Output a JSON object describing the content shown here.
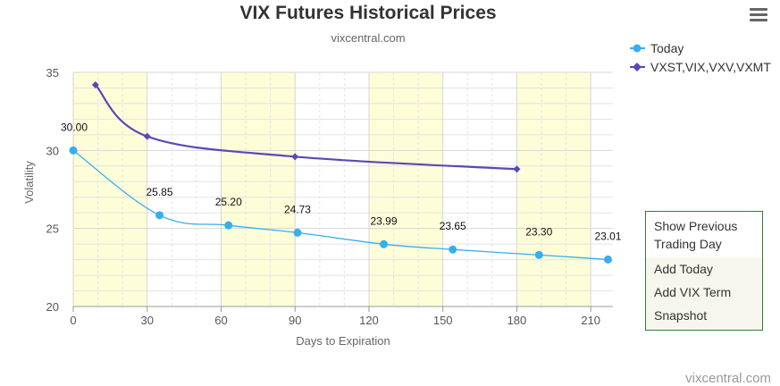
{
  "header": {
    "title": "VIX Futures Historical Prices",
    "subtitle": "vixcentral.com"
  },
  "credit": "vixcentral.com",
  "menu_icon": "hamburger-menu-icon",
  "context_menu": {
    "items": [
      {
        "label_line1": "Show Previous",
        "label_line2": "Trading Day"
      },
      {
        "label_line1": "Add Today"
      },
      {
        "label_line1": "Add VIX Term"
      },
      {
        "label_line1": "Snapshot"
      }
    ]
  },
  "colors": {
    "today": "#37aef0",
    "vxst": "#5a48b7",
    "band": "#fdfdd8",
    "grid": "#e3e3e3",
    "menu_border": "#2e7d32"
  },
  "chart_data": {
    "type": "line",
    "title": "VIX Futures Historical Prices",
    "subtitle": "vixcentral.com",
    "xlabel": "Days to Expiration",
    "ylabel": "Volatility",
    "xlim": [
      0,
      219
    ],
    "ylim": [
      20,
      35
    ],
    "x_ticks": [
      0,
      30,
      60,
      90,
      120,
      150,
      180,
      210
    ],
    "y_ticks": [
      20,
      25,
      30,
      35
    ],
    "bands": [
      [
        0,
        30
      ],
      [
        60,
        90
      ],
      [
        120,
        150
      ],
      [
        180,
        210
      ]
    ],
    "grid": true,
    "legend": "top-right",
    "series": [
      {
        "name": "Today",
        "marker": "circle",
        "x": [
          0,
          35,
          63,
          91,
          126,
          154,
          189,
          217
        ],
        "y": [
          30.0,
          25.85,
          25.2,
          24.73,
          23.99,
          23.65,
          23.3,
          23.01
        ],
        "labels": [
          "30.00",
          "25.85",
          "25.20",
          "24.73",
          "23.99",
          "23.65",
          "23.30",
          "23.01"
        ]
      },
      {
        "name": "VXST,VIX,VXV,VXMT",
        "marker": "diamond",
        "x": [
          9,
          30,
          90,
          180
        ],
        "y": [
          34.2,
          30.9,
          29.6,
          28.8
        ]
      }
    ]
  }
}
